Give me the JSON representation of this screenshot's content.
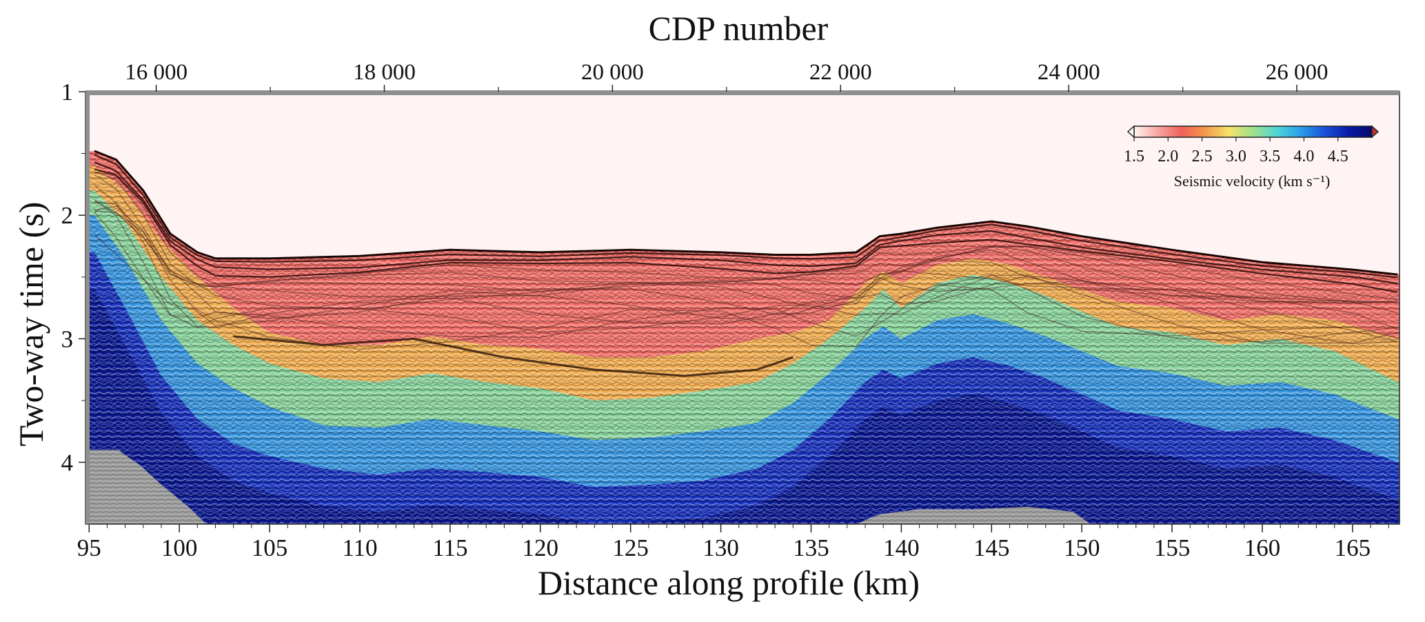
{
  "chart_data": {
    "type": "heatmap",
    "top_axis": {
      "label": "CDP number",
      "ticks": [
        "16 000",
        "18 000",
        "20 000",
        "22 000",
        "24 000",
        "26 000"
      ],
      "tick_values": [
        16000,
        18000,
        20000,
        22000,
        24000,
        26000
      ],
      "range": [
        15380,
        26900
      ]
    },
    "x_axis": {
      "label": "Distance along profile (km)",
      "ticks": [
        "95",
        "100",
        "105",
        "110",
        "115",
        "120",
        "125",
        "130",
        "135",
        "140",
        "145",
        "150",
        "155",
        "160",
        "165"
      ],
      "tick_values": [
        95,
        100,
        105,
        110,
        115,
        120,
        125,
        130,
        135,
        140,
        145,
        150,
        155,
        160,
        165
      ],
      "range": [
        94.8,
        167.6
      ]
    },
    "y_axis": {
      "label": "Two-way time (s)",
      "ticks": [
        "1",
        "2",
        "3",
        "4"
      ],
      "tick_values": [
        1,
        2,
        3,
        4
      ],
      "range": [
        1.0,
        4.5
      ],
      "inverted": true
    },
    "colorbar": {
      "label": "Seismic velocity (km s⁻¹)",
      "ticks": [
        "1.5",
        "2.0",
        "2.5",
        "3.0",
        "3.5",
        "4.0",
        "4.5"
      ],
      "tick_values": [
        1.5,
        2.0,
        2.5,
        3.0,
        3.5,
        4.0,
        4.5
      ],
      "range": [
        1.5,
        5.0
      ],
      "placement": "top-right",
      "colors": [
        "#fff5f3",
        "#f7a6a0",
        "#f0605a",
        "#f39a4a",
        "#f5e36a",
        "#9fe08a",
        "#4fd6d6",
        "#2a9ee8",
        "#1a52d8",
        "#0a1aa8",
        "#050a6a"
      ]
    },
    "seafloor_twt": {
      "km": [
        95.3,
        96.5,
        98,
        99.5,
        101,
        102,
        105,
        110,
        115,
        120,
        125,
        130,
        133,
        135,
        137.5,
        138.8,
        140,
        142,
        145,
        147,
        150,
        155,
        160,
        165,
        167.5
      ],
      "twt": [
        1.48,
        1.55,
        1.8,
        2.15,
        2.3,
        2.35,
        2.35,
        2.33,
        2.28,
        2.3,
        2.28,
        2.3,
        2.32,
        2.32,
        2.3,
        2.17,
        2.15,
        2.1,
        2.05,
        2.09,
        2.17,
        2.28,
        2.38,
        2.44,
        2.48
      ]
    },
    "velocity_contours_twt": {
      "km": [
        95.3,
        97,
        99,
        101,
        103,
        105,
        108,
        111,
        114,
        117,
        120,
        123,
        126,
        129,
        132,
        134,
        136,
        138,
        139,
        140,
        142,
        144,
        146,
        148,
        150,
        152,
        155,
        158,
        161,
        164,
        167.5
      ],
      "v2_5": [
        1.6,
        1.8,
        2.2,
        2.5,
        2.75,
        2.95,
        3.05,
        3.05,
        2.98,
        3.05,
        3.08,
        3.15,
        3.15,
        3.1,
        3.0,
        2.95,
        2.85,
        2.55,
        2.45,
        2.55,
        2.4,
        2.35,
        2.4,
        2.5,
        2.6,
        2.7,
        2.75,
        2.85,
        2.8,
        2.85,
        3.0
      ],
      "v3_0": [
        1.8,
        2.05,
        2.5,
        2.85,
        3.05,
        3.2,
        3.32,
        3.35,
        3.28,
        3.35,
        3.4,
        3.5,
        3.48,
        3.42,
        3.35,
        3.2,
        3.0,
        2.75,
        2.6,
        2.75,
        2.55,
        2.48,
        2.55,
        2.65,
        2.78,
        2.9,
        2.95,
        3.05,
        3.0,
        3.1,
        3.35
      ],
      "v3_5": [
        2.0,
        2.35,
        2.85,
        3.2,
        3.4,
        3.55,
        3.7,
        3.72,
        3.65,
        3.7,
        3.75,
        3.82,
        3.8,
        3.75,
        3.68,
        3.52,
        3.28,
        3.0,
        2.9,
        3.0,
        2.85,
        2.8,
        2.88,
        2.98,
        3.1,
        3.22,
        3.28,
        3.38,
        3.35,
        3.45,
        3.65
      ],
      "v4_0": [
        2.3,
        2.75,
        3.3,
        3.65,
        3.85,
        3.95,
        4.05,
        4.1,
        4.05,
        4.08,
        4.12,
        4.2,
        4.18,
        4.15,
        4.05,
        3.9,
        3.65,
        3.35,
        3.25,
        3.32,
        3.2,
        3.15,
        3.22,
        3.32,
        3.45,
        3.58,
        3.65,
        3.75,
        3.72,
        3.82,
        4.0
      ]
    },
    "basement_twt": {
      "km": [
        95.3,
        96.6,
        97.8,
        99,
        100.5,
        101.5
      ],
      "twt": [
        3.9,
        3.9,
        4.02,
        4.18,
        4.36,
        4.5
      ]
    },
    "basement_right_twt": {
      "km": [
        137.5,
        138.8,
        141,
        144,
        147,
        149.5,
        150.5
      ],
      "twt": [
        4.5,
        4.42,
        4.38,
        4.38,
        4.36,
        4.4,
        4.5
      ]
    },
    "grid": false
  }
}
